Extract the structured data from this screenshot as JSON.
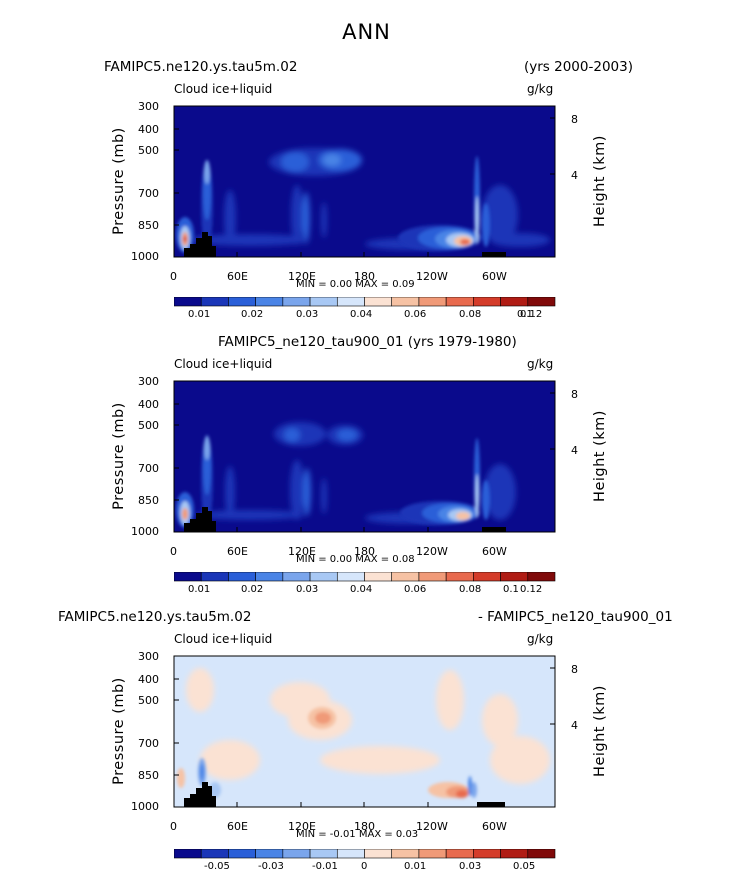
{
  "page_title": "ANN",
  "panels": [
    {
      "run_left": "FAMIPC5.ne120.ys.tau5m.02",
      "run_right": "(yrs 2000-2003)",
      "run_center": "",
      "variable": "Cloud ice+liquid",
      "units": "g/kg",
      "stats": "MIN =    0.00   MAX =    0.09",
      "colorbar_labels": [
        "0.01",
        "0.02",
        "0.03",
        "0.04",
        "0.06",
        "0.08",
        "0.1",
        "0.12"
      ]
    },
    {
      "run_left": "",
      "run_right": "",
      "run_center": "FAMIPC5_ne120_tau900_01 (yrs 1979-1980)",
      "variable": "Cloud ice+liquid",
      "units": "g/kg",
      "stats": "MIN =    0.00   MAX =    0.08",
      "colorbar_labels": [
        "0.01",
        "0.02",
        "0.03",
        "0.04",
        "0.06",
        "0.08",
        "0.1",
        "0.12"
      ]
    },
    {
      "run_left": "FAMIPC5.ne120.ys.tau5m.02",
      "run_right": "- FAMIPC5_ne120_tau900_01",
      "run_center": "",
      "variable": "Cloud ice+liquid",
      "units": "g/kg",
      "stats": "MIN =  -0.01   MAX =    0.03",
      "colorbar_labels": [
        "-0.05",
        "-0.03",
        "-0.01",
        "0",
        "0.01",
        "0.03",
        "0.05"
      ]
    }
  ],
  "axes": {
    "ylabel": "Pressure (mb)",
    "y2label": "Height (km)",
    "pressure_ticks": [
      "300",
      "400",
      "500",
      "700",
      "850",
      "1000"
    ],
    "height_ticks": [
      "8",
      "4"
    ],
    "lon_ticks": [
      "0",
      "60E",
      "120E",
      "180",
      "120W",
      "60W"
    ]
  },
  "chart_data": [
    {
      "type": "heatmap",
      "title": "ANN",
      "subtitle": "FAMIPC5.ne120.ys.tau5m.02 (yrs 2000-2003)",
      "field": "Cloud ice+liquid",
      "units": "g/kg",
      "x": {
        "label": "",
        "ticks": [
          "0",
          "60E",
          "120E",
          "180",
          "120W",
          "60W"
        ],
        "range_deg": [
          0,
          360
        ]
      },
      "y": {
        "label": "Pressure (mb)",
        "ticks": [
          300,
          400,
          500,
          700,
          850,
          1000
        ],
        "range": [
          300,
          1000
        ],
        "scale": "log",
        "reversed": true
      },
      "y2": {
        "label": "Height (km)",
        "ticks": [
          8,
          4
        ]
      },
      "min": 0.0,
      "max": 0.09,
      "levels": [
        0.01,
        0.02,
        0.03,
        0.04,
        0.06,
        0.08,
        0.1,
        0.12
      ],
      "colors": [
        "#0a0a8c",
        "#1a36b8",
        "#2a5fd8",
        "#4a84e6",
        "#7aa5ec",
        "#a8c8f4",
        "#d6e6fb",
        "#fbe2d3",
        "#f6c2a4",
        "#f09a78",
        "#e86a4e",
        "#d43c2a",
        "#b01c14",
        "#800a0a"
      ],
      "features": [
        {
          "name": "tropical upper-level band 120E-180",
          "lon": [
            100,
            175
          ],
          "p": [
            480,
            610
          ],
          "value": 0.02
        },
        {
          "name": "Africa deep column 20-35E",
          "lon": [
            26,
            36
          ],
          "p": [
            560,
            900
          ],
          "value": 0.03
        },
        {
          "name": "west Africa low level max",
          "lon": [
            8,
            14
          ],
          "p": [
            820,
            960
          ],
          "value": 0.09
        },
        {
          "name": "SE Pacific stratocumulus",
          "lon": [
            250,
            290
          ],
          "p": [
            830,
            960
          ],
          "value": 0.08
        },
        {
          "name": "Andes column ~75W",
          "lon": [
            283,
            290
          ],
          "p": [
            500,
            950
          ],
          "value": 0.03
        }
      ]
    },
    {
      "type": "heatmap",
      "subtitle": "FAMIPC5_ne120_tau900_01 (yrs 1979-1980)",
      "field": "Cloud ice+liquid",
      "units": "g/kg",
      "x": {
        "ticks": [
          "0",
          "60E",
          "120E",
          "180",
          "120W",
          "60W"
        ],
        "range_deg": [
          0,
          360
        ]
      },
      "y": {
        "label": "Pressure (mb)",
        "ticks": [
          300,
          400,
          500,
          700,
          850,
          1000
        ],
        "range": [
          300,
          1000
        ],
        "scale": "log",
        "reversed": true
      },
      "y2": {
        "label": "Height (km)",
        "ticks": [
          8,
          4
        ]
      },
      "min": 0.0,
      "max": 0.08,
      "levels": [
        0.01,
        0.02,
        0.03,
        0.04,
        0.06,
        0.08,
        0.1,
        0.12
      ],
      "features": [
        {
          "name": "tropical upper-level band 120E-180",
          "lon": [
            100,
            170
          ],
          "p": [
            480,
            610
          ],
          "value": 0.02
        },
        {
          "name": "Africa deep column",
          "lon": [
            26,
            36
          ],
          "p": [
            560,
            900
          ],
          "value": 0.03
        },
        {
          "name": "west Africa low level max",
          "lon": [
            8,
            14
          ],
          "p": [
            820,
            960
          ],
          "value": 0.08
        },
        {
          "name": "SE Pacific stratocumulus",
          "lon": [
            250,
            290
          ],
          "p": [
            830,
            960
          ],
          "value": 0.07
        }
      ]
    },
    {
      "type": "heatmap",
      "subtitle": "FAMIPC5.ne120.ys.tau5m.02 - FAMIPC5_ne120_tau900_01",
      "field": "Cloud ice+liquid",
      "units": "g/kg",
      "x": {
        "ticks": [
          "0",
          "60E",
          "120E",
          "180",
          "120W",
          "60W"
        ],
        "range_deg": [
          0,
          360
        ]
      },
      "y": {
        "label": "Pressure (mb)",
        "ticks": [
          300,
          400,
          500,
          700,
          850,
          1000
        ],
        "range": [
          300,
          1000
        ],
        "scale": "log",
        "reversed": true
      },
      "y2": {
        "label": "Height (km)",
        "ticks": [
          8,
          4
        ]
      },
      "min": -0.01,
      "max": 0.03,
      "levels": [
        -0.05,
        -0.03,
        -0.01,
        0,
        0.01,
        0.03,
        0.05
      ],
      "colors": [
        "#0a0a8c",
        "#1a36b8",
        "#2a5fd8",
        "#4a84e6",
        "#7aa5ec",
        "#a8c8f4",
        "#d6e6fb",
        "#fbe2d3",
        "#f6c2a4",
        "#f09a78",
        "#e86a4e",
        "#d43c2a",
        "#b01c14",
        "#800a0a"
      ],
      "features": [
        {
          "name": "positive diff near 120E 500-700mb",
          "lon": [
            110,
            140
          ],
          "p": [
            540,
            660
          ],
          "value": 0.01
        },
        {
          "name": "positive diff SE Pacific low level",
          "lon": [
            255,
            290
          ],
          "p": [
            860,
            980
          ],
          "value": 0.03
        },
        {
          "name": "negative diff Africa low level",
          "lon": [
            20,
            26
          ],
          "p": [
            820,
            940
          ],
          "value": -0.01
        }
      ]
    }
  ]
}
